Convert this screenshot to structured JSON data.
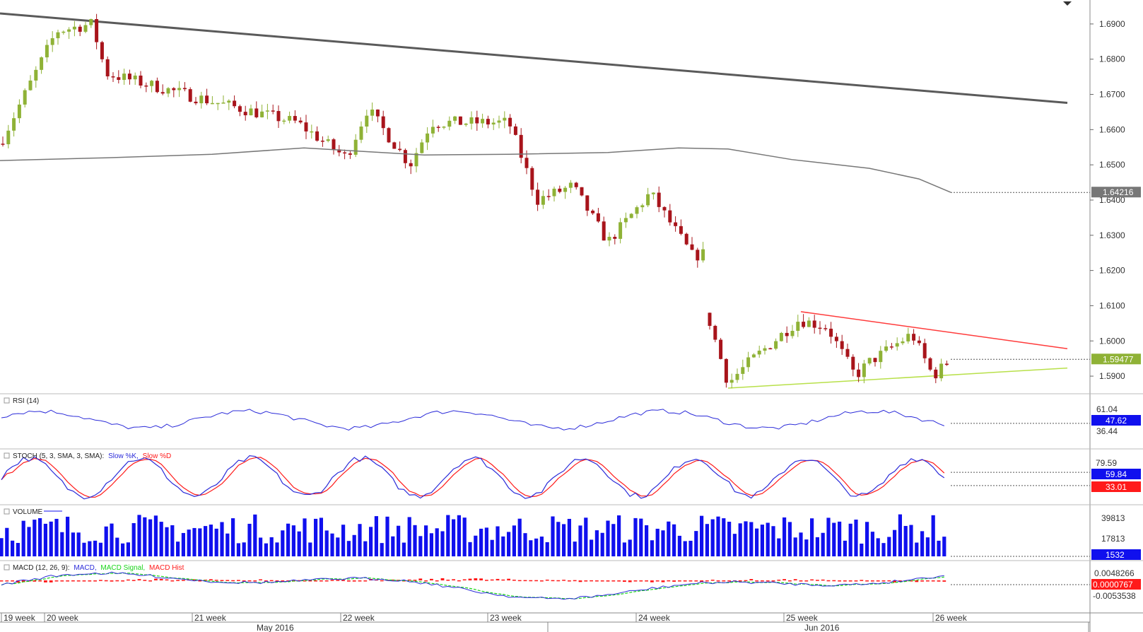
{
  "chart_data": {
    "type": "candlestick",
    "main": {
      "y_ticks": [
        "1.6900",
        "1.6800",
        "1.6700",
        "1.6600",
        "1.6500",
        "1.6400",
        "1.6300",
        "1.6200",
        "1.6100",
        "1.6000",
        "1.5900"
      ],
      "ylim": [
        1.586,
        1.696
      ],
      "last_price": "1.59477",
      "ma_value": "1.64216",
      "trendlines": [
        {
          "name": "long-resistance",
          "color": "#5a5a5a",
          "from": [
            0,
            1.693
          ],
          "to": [
            1510,
            1.6676
          ]
        },
        {
          "name": "triangle-upper",
          "color": "#ff3b3b",
          "from": [
            1133,
            1.6083
          ],
          "to": [
            1510,
            1.5978
          ]
        },
        {
          "name": "triangle-lower",
          "color": "#b8e04a",
          "from": [
            1030,
            1.5866
          ],
          "to": [
            1510,
            1.5923
          ]
        }
      ],
      "gap_segments": [
        {
          "name": "pre-gap",
          "x_from": 0,
          "x_to": 1000,
          "start": 1.656,
          "waypoints": [
            [
              80,
              1.688
            ],
            [
              130,
              1.69
            ],
            [
              150,
              1.676
            ],
            [
              300,
              1.668
            ],
            [
              420,
              1.662
            ],
            [
              490,
              1.652
            ],
            [
              520,
              1.666
            ],
            [
              580,
              1.65
            ],
            [
              610,
              1.662
            ],
            [
              720,
              1.662
            ],
            [
              760,
              1.64
            ],
            [
              810,
              1.644
            ],
            [
              860,
              1.628
            ],
            [
              920,
              1.642
            ],
            [
              980,
              1.624
            ],
            [
              1000,
              1.625
            ]
          ]
        },
        {
          "name": "post-gap",
          "x_from": 1000,
          "x_to": 1345,
          "start": 1.608,
          "waypoints": [
            [
              1030,
              1.588
            ],
            [
              1060,
              1.594
            ],
            [
              1130,
              1.606
            ],
            [
              1170,
              1.604
            ],
            [
              1210,
              1.59
            ],
            [
              1230,
              1.594
            ],
            [
              1290,
              1.602
            ],
            [
              1320,
              1.59
            ],
            [
              1345,
              1.5948
            ]
          ]
        }
      ]
    },
    "rsi": {
      "label": "RSI (14)",
      "ticks": [
        "61.04",
        "36.44"
      ],
      "value": "47.62",
      "ylim": [
        20,
        80
      ]
    },
    "stoch": {
      "label": "STOCH (5, 3, SMA, 3, SMA):",
      "k_label": "Slow %K,",
      "d_label": "Slow %D",
      "ticks": [
        "79.59"
      ],
      "k_value": "59.84",
      "d_value": "33.01"
    },
    "volume": {
      "label": "VOLUME",
      "ticks": [
        "39813",
        "17813"
      ],
      "value": "1532"
    },
    "macd": {
      "label": "MACD (12, 26, 9):",
      "line_label": "MACD,",
      "signal_label": "MACD Signal,",
      "hist_label": "MACD Hist",
      "ticks": [
        "0.0048266",
        "-0.0053538"
      ],
      "value": "0.0000767"
    },
    "x_axis": {
      "week_labels": [
        {
          "label": "19 week",
          "x": 5
        },
        {
          "label": "20 week",
          "x": 66
        },
        {
          "label": "21 week",
          "x": 275
        },
        {
          "label": "22 week",
          "x": 485
        },
        {
          "label": "23 week",
          "x": 693
        },
        {
          "label": "24 week",
          "x": 903
        },
        {
          "label": "25 week",
          "x": 1112
        },
        {
          "label": "26 week",
          "x": 1323
        }
      ],
      "month_labels": [
        {
          "label": "May 2016",
          "x": 385
        },
        {
          "label": "Jun 2016",
          "x": 1160
        }
      ]
    },
    "colors": {
      "bull": "#8fb236",
      "bear": "#a8141b",
      "rsi": "#2b2bd9",
      "stoch_k": "#2b2bd9",
      "stoch_d": "#ff1a1a",
      "volume": "#1010ee",
      "macd_line": "#2b2bd9",
      "macd_signal": "#19d419",
      "macd_hist": "#ff1a1a"
    }
  }
}
